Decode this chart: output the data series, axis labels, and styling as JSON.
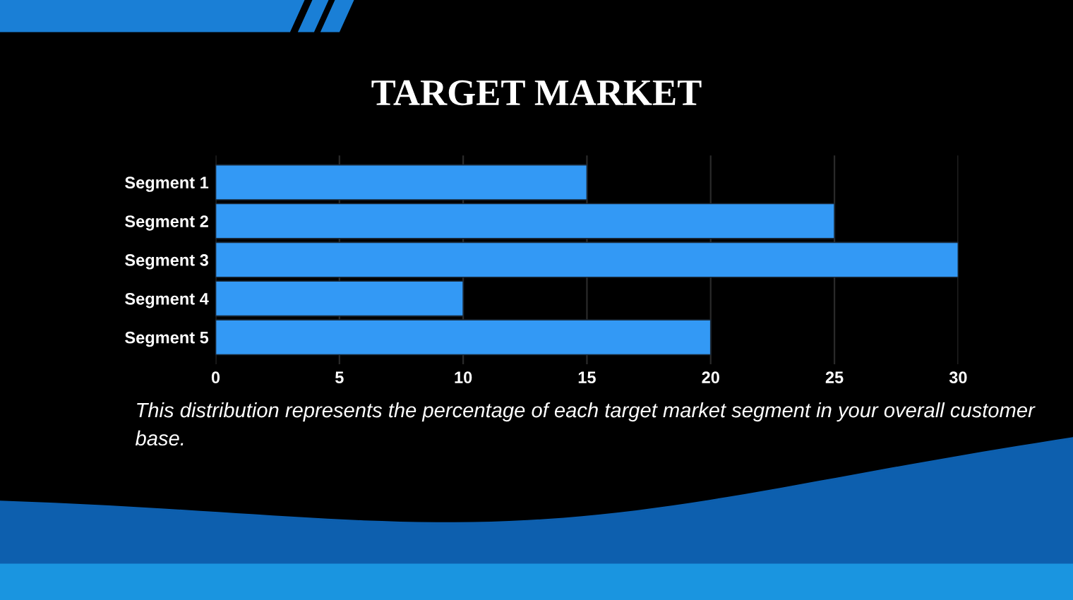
{
  "chart_data": {
    "type": "bar",
    "orientation": "horizontal",
    "title": "TARGET MARKET",
    "categories": [
      "Segment 1",
      "Segment 2",
      "Segment 3",
      "Segment 4",
      "Segment 5"
    ],
    "values": [
      15,
      25,
      30,
      10,
      20
    ],
    "color": "#3399f5",
    "xlim": [
      0,
      30
    ],
    "xticks": [
      0,
      5,
      10,
      15,
      20,
      25,
      30
    ],
    "grid": "x",
    "annotations": [
      "This distribution represents the percentage of each target market segment in your overall customer base."
    ]
  }
}
